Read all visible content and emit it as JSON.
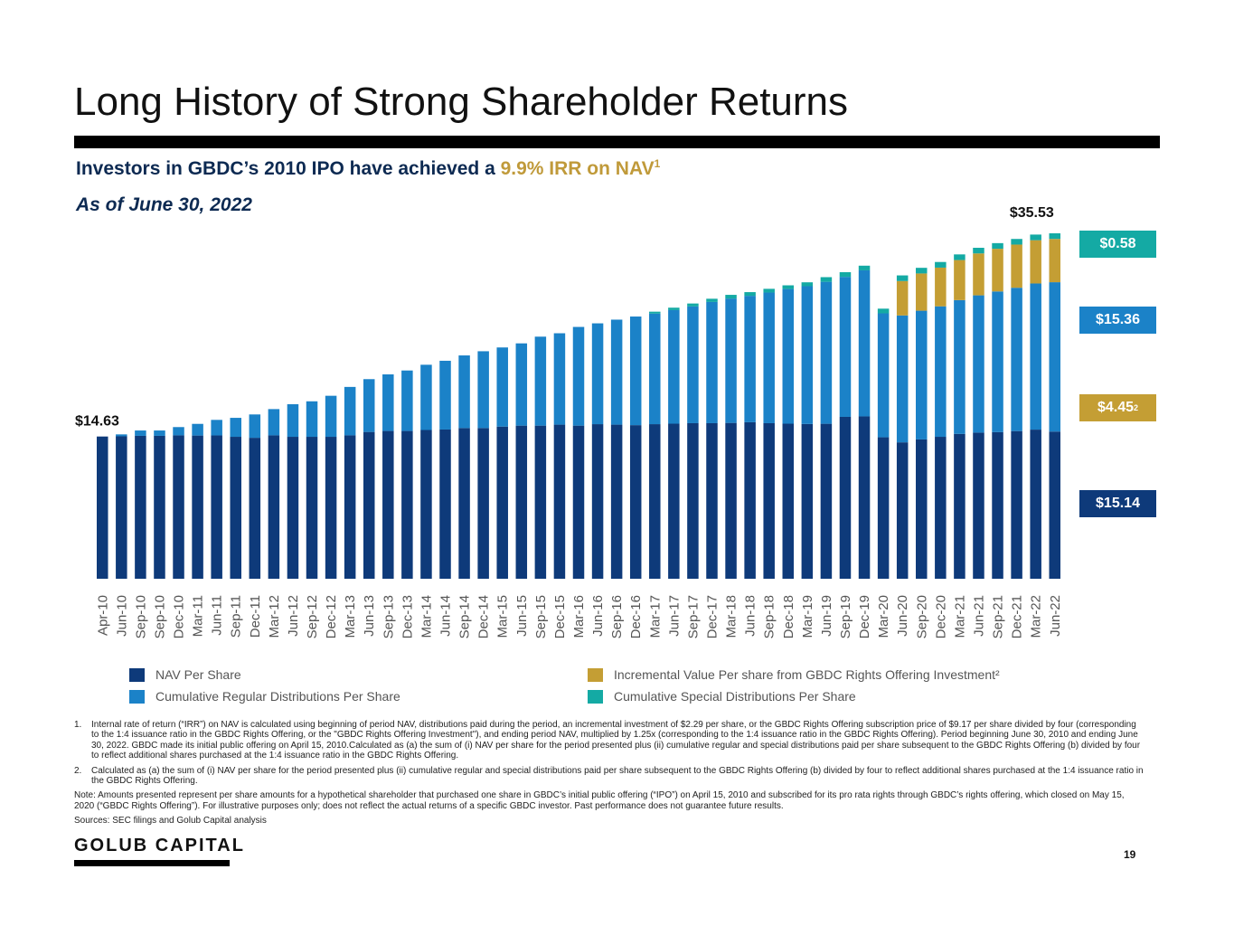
{
  "slide": {
    "title": "Long History of Strong Shareholder Returns",
    "subtitle_prefix": "Investors in GBDC’s 2010 IPO have achieved a ",
    "subtitle_highlight": "9.9% IRR on NAV",
    "subtitle_sup": "1",
    "as_of": "As of June 30, 2022",
    "logo": "GOLUB CAPITAL",
    "page_number": "19"
  },
  "colors": {
    "nav": "#0e3a7a",
    "regular": "#1b82c8",
    "incremental": "#c49e34",
    "special": "#14aaa4",
    "highlight": "#c09a3a",
    "title_rule": "#000000"
  },
  "chart_data": {
    "type": "bar",
    "stacked": true,
    "ylim": [
      0,
      36
    ],
    "grid": false,
    "legend_position": "bottom",
    "categories": [
      "Apr-10",
      "Jun-10",
      "Sep-10",
      "Sep-10",
      "Dec-10",
      "Mar-11",
      "Jun-11",
      "Sep-11",
      "Dec-11",
      "Mar-12",
      "Jun-12",
      "Sep-12",
      "Dec-12",
      "Mar-13",
      "Jun-13",
      "Sep-13",
      "Dec-13",
      "Mar-14",
      "Jun-14",
      "Sep-14",
      "Dec-14",
      "Mar-15",
      "Jun-15",
      "Sep-15",
      "Dec-15",
      "Mar-16",
      "Jun-16",
      "Sep-16",
      "Dec-16",
      "Mar-17",
      "Jun-17",
      "Sep-17",
      "Dec-17",
      "Mar-18",
      "Jun-18",
      "Sep-18",
      "Dec-18",
      "Mar-19",
      "Jun-19",
      "Sep-19",
      "Dec-19",
      "Mar-20",
      "Jun-20",
      "Sep-20",
      "Dec-20",
      "Mar-21",
      "Jun-21",
      "Sep-21",
      "Dec-21",
      "Mar-22",
      "Jun-22"
    ],
    "series": [
      {
        "name": "NAV Per Share",
        "color": "#0e3a7a",
        "values": [
          14.63,
          14.65,
          14.7,
          14.7,
          14.75,
          14.73,
          14.74,
          14.6,
          14.5,
          14.75,
          14.6,
          14.6,
          14.6,
          14.75,
          15.1,
          15.2,
          15.2,
          15.3,
          15.35,
          15.5,
          15.5,
          15.65,
          15.75,
          15.75,
          15.85,
          15.75,
          15.9,
          15.85,
          15.8,
          15.9,
          15.95,
          16.0,
          16.0,
          16.03,
          16.1,
          16.0,
          15.95,
          15.92,
          15.94,
          16.65,
          16.7,
          14.55,
          14.03,
          14.33,
          14.6,
          14.9,
          15.03,
          15.08,
          15.19,
          15.34,
          15.14
        ]
      },
      {
        "name": "Cumulative Regular Distributions Per Share",
        "color": "#1b82c8",
        "values": [
          0,
          0.2,
          0.55,
          0.55,
          0.85,
          1.2,
          1.6,
          1.95,
          2.4,
          2.7,
          3.35,
          3.65,
          4.22,
          4.98,
          5.43,
          5.82,
          6.22,
          6.71,
          7.07,
          7.47,
          7.9,
          8.14,
          8.46,
          9.15,
          9.4,
          10.15,
          10.37,
          10.8,
          11.17,
          11.37,
          11.68,
          12.01,
          12.47,
          12.79,
          13.0,
          13.44,
          13.85,
          14.17,
          14.6,
          14.4,
          15.02,
          12.75,
          13.05,
          13.24,
          13.42,
          13.76,
          14.12,
          14.47,
          14.74,
          15.03,
          15.36
        ]
      },
      {
        "name": "Incremental Value Per share from GBDC Rights Offering Investment²",
        "color": "#c49e34",
        "values": [
          0,
          0,
          0,
          0,
          0,
          0,
          0,
          0,
          0,
          0,
          0,
          0,
          0,
          0,
          0,
          0,
          0,
          0,
          0,
          0,
          0,
          0,
          0,
          0,
          0,
          0,
          0,
          0,
          0,
          0,
          0,
          0,
          0,
          0,
          0,
          0,
          0,
          0,
          0,
          0,
          0,
          0,
          3.54,
          3.83,
          3.98,
          4.12,
          4.31,
          4.39,
          4.44,
          4.45,
          4.45
        ]
      },
      {
        "name": "Cumulative Special Distributions Per Share",
        "color": "#14aaa4",
        "values": [
          0,
          0,
          0,
          0,
          0,
          0,
          0,
          0,
          0,
          0,
          0,
          0,
          0,
          0,
          0,
          0,
          0,
          0,
          0,
          0,
          0,
          0,
          0,
          0,
          0,
          0,
          0,
          0,
          0,
          0.2,
          0.25,
          0.3,
          0.33,
          0.38,
          0.38,
          0.38,
          0.38,
          0.4,
          0.48,
          0.48,
          0.48,
          0.48,
          0.58,
          0.58,
          0.58,
          0.58,
          0.58,
          0.58,
          0.58,
          0.58,
          0.58
        ]
      }
    ],
    "data_labels": {
      "first": "$14.63",
      "last": "$35.53"
    },
    "callouts": [
      {
        "label": "$0.58",
        "sup": "",
        "series": 3
      },
      {
        "label": "$15.36",
        "sup": "",
        "series": 1
      },
      {
        "label": "$4.45",
        "sup": "2",
        "series": 2
      },
      {
        "label": "$15.14",
        "sup": "",
        "series": 0
      }
    ],
    "legend": [
      {
        "label": "NAV Per Share",
        "color": "#0e3a7a"
      },
      {
        "label": "Cumulative Regular Distributions Per Share",
        "color": "#1b82c8"
      },
      {
        "label": "Incremental Value Per share from GBDC Rights Offering Investment²",
        "color": "#c49e34"
      },
      {
        "label": "Cumulative Special Distributions Per Share",
        "color": "#14aaa4"
      }
    ]
  },
  "footnotes": [
    {
      "num": "1.",
      "text": "Internal rate of return (“IRR”) on NAV is calculated using beginning of period NAV, distributions paid during the period, an incremental investment of $2.29 per share, or the GBDC Rights Offering subscription price of $9.17 per share divided by four (corresponding to the 1:4 issuance ratio in the GBDC Rights Offering, or the \"GBDC Rights Offering Investment\"), and ending period NAV, multiplied by 1.25x (corresponding to the 1:4 issuance ratio in the GBDC Rights Offering). Period beginning June 30, 2010 and ending June 30, 2022. GBDC made its initial public offering on April 15, 2010.Calculated as (a) the sum of (i) NAV per share for the period presented plus (ii) cumulative regular and special distributions paid per share subsequent to the GBDC Rights Offering (b) divided by four to reflect additional shares purchased at the 1:4 issuance ratio in the GBDC Rights Offering."
    },
    {
      "num": "2.",
      "text": "Calculated as (a) the sum of (i) NAV per share for the period presented plus (ii) cumulative regular and special distributions paid per share subsequent to the GBDC Rights Offering (b) divided by four to reflect additional shares purchased at the 1:4 issuance ratio in the GBDC Rights Offering."
    }
  ],
  "notes": [
    "Note: Amounts presented represent per share amounts for a hypothetical shareholder that purchased one share in GBDC’s initial public offering (“IPO”) on April 15, 2010 and subscribed for its pro rata rights through GBDC’s rights offering, which closed on May 15, 2020 (“GBDC Rights Offering”). For illustrative purposes only; does not reflect the actual returns of a specific GBDC investor. Past performance does not guarantee future results.",
    "Sources: SEC filings and Golub Capital analysis"
  ]
}
